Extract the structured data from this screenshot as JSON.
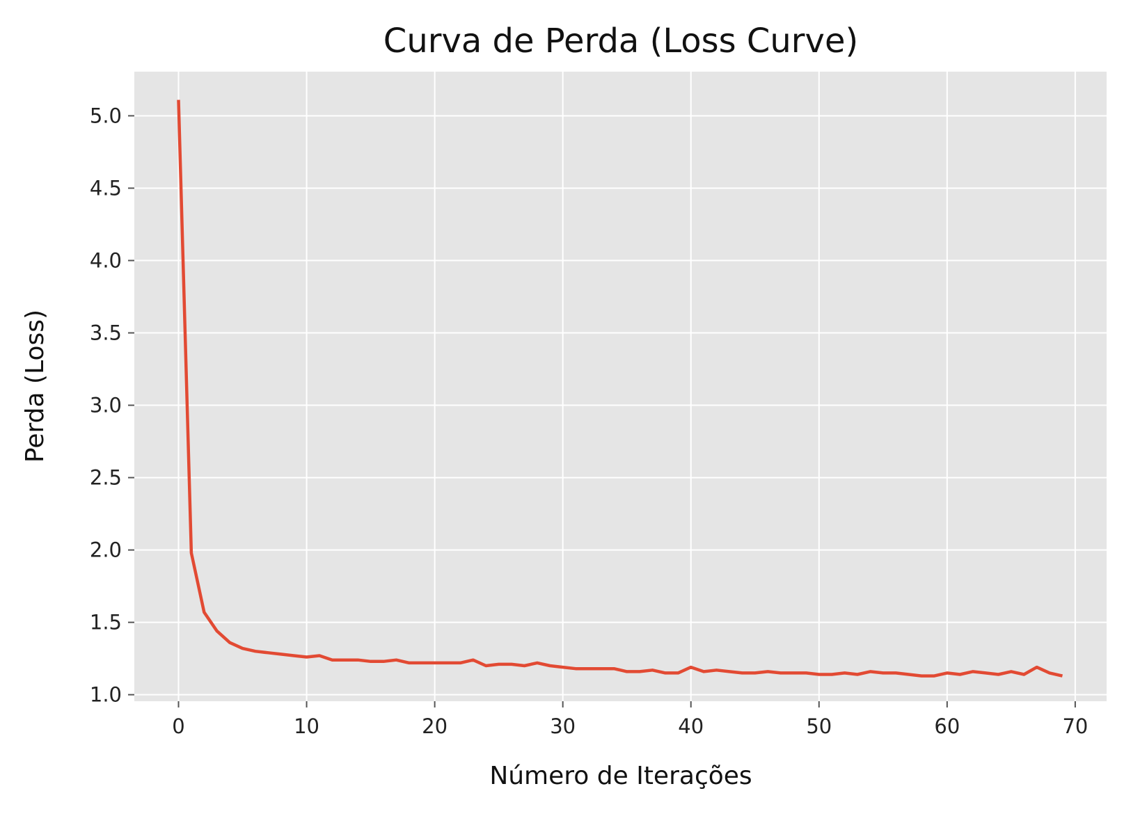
{
  "chart_data": {
    "type": "line",
    "title": "Curva de Perda (Loss Curve)",
    "xlabel": "Número de Iterações",
    "ylabel": "Perda (Loss)",
    "xlim": [
      -3.45,
      72.45
    ],
    "ylim": [
      0.955,
      5.305
    ],
    "xticks": [
      0,
      10,
      20,
      30,
      40,
      50,
      60,
      70
    ],
    "xtick_labels": [
      "0",
      "10",
      "20",
      "30",
      "40",
      "50",
      "60",
      "70"
    ],
    "yticks": [
      1.0,
      1.5,
      2.0,
      2.5,
      3.0,
      3.5,
      4.0,
      4.5,
      5.0
    ],
    "ytick_labels": [
      "1.0",
      "1.5",
      "2.0",
      "2.5",
      "3.0",
      "3.5",
      "4.0",
      "4.5",
      "5.0"
    ],
    "grid": true,
    "colors": {
      "background": "#e5e5e5",
      "grid": "#ffffff",
      "line": "#e24a33"
    },
    "series": [
      {
        "x": [
          0,
          1,
          2,
          3,
          4,
          5,
          6,
          7,
          8,
          9,
          10,
          11,
          12,
          13,
          14,
          15,
          16,
          17,
          18,
          19,
          20,
          21,
          22,
          23,
          24,
          25,
          26,
          27,
          28,
          29,
          30,
          31,
          32,
          33,
          34,
          35,
          36,
          37,
          38,
          39,
          40,
          41,
          42,
          43,
          44,
          45,
          46,
          47,
          48,
          49,
          50,
          51,
          52,
          53,
          54,
          55,
          56,
          57,
          58,
          59,
          60,
          61,
          62,
          63,
          64,
          65,
          66,
          67,
          68,
          69
        ],
        "values": [
          5.11,
          1.98,
          1.57,
          1.44,
          1.36,
          1.32,
          1.3,
          1.29,
          1.28,
          1.27,
          1.26,
          1.27,
          1.24,
          1.24,
          1.24,
          1.23,
          1.23,
          1.24,
          1.22,
          1.22,
          1.22,
          1.22,
          1.22,
          1.24,
          1.2,
          1.21,
          1.21,
          1.2,
          1.22,
          1.2,
          1.19,
          1.18,
          1.18,
          1.18,
          1.18,
          1.16,
          1.16,
          1.17,
          1.15,
          1.15,
          1.19,
          1.16,
          1.17,
          1.16,
          1.15,
          1.15,
          1.16,
          1.15,
          1.15,
          1.15,
          1.14,
          1.14,
          1.15,
          1.14,
          1.16,
          1.15,
          1.15,
          1.14,
          1.13,
          1.13,
          1.15,
          1.14,
          1.16,
          1.15,
          1.14,
          1.16,
          1.14,
          1.19,
          1.15,
          1.13
        ]
      }
    ]
  }
}
